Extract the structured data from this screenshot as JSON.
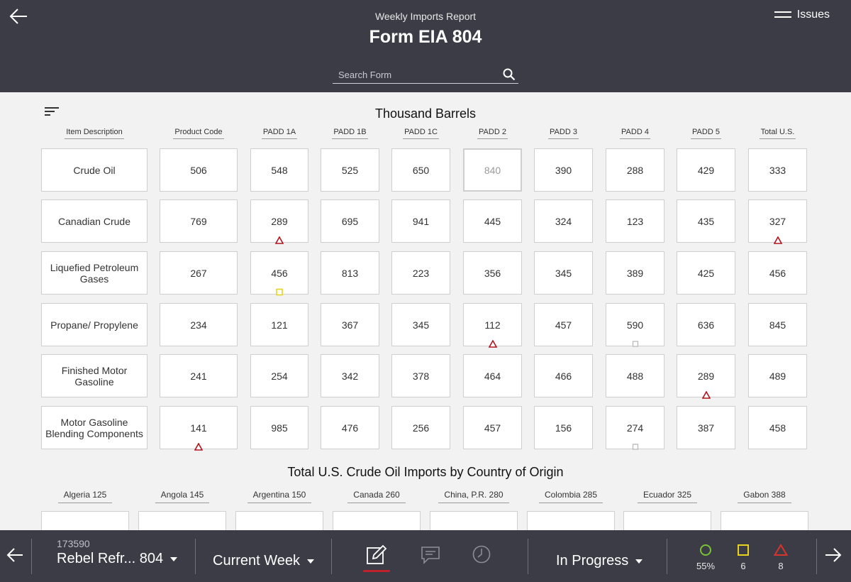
{
  "header": {
    "subtitle": "Weekly Imports Report",
    "title": "Form EIA 804",
    "issues_label": "Issues",
    "search_placeholder": "Search Form"
  },
  "table": {
    "title": "Thousand Barrels",
    "columns": [
      "Item Description",
      "Product Code",
      "PADD 1A",
      "PADD 1B",
      "PADD 1C",
      "PADD 2",
      "PADD 3",
      "PADD 4",
      "PADD 5",
      "Total U.S."
    ],
    "rows": [
      {
        "description": "Crude Oil",
        "values": [
          "506",
          "548",
          "525",
          "650",
          "840",
          "390",
          "288",
          "429",
          "333"
        ]
      },
      {
        "description": "Canadian Crude",
        "values": [
          "769",
          "289",
          "695",
          "941",
          "445",
          "324",
          "123",
          "435",
          "327"
        ]
      },
      {
        "description": "Liquefied Petroleum Gases",
        "values": [
          "267",
          "456",
          "813",
          "223",
          "356",
          "345",
          "389",
          "425",
          "456"
        ]
      },
      {
        "description": "Propane/ Propylene",
        "values": [
          "234",
          "121",
          "367",
          "345",
          "112",
          "457",
          "590",
          "636",
          "845"
        ]
      },
      {
        "description": "Finished Motor Gasoline",
        "values": [
          "241",
          "254",
          "342",
          "378",
          "464",
          "466",
          "488",
          "289",
          "489"
        ]
      },
      {
        "description": "Motor Gasoline Blending Components",
        "values": [
          "141",
          "985",
          "476",
          "256",
          "457",
          "156",
          "274",
          "387",
          "458"
        ]
      }
    ],
    "flags": [
      {
        "row": 1,
        "col": 2,
        "type": "error"
      },
      {
        "row": 1,
        "col": 9,
        "type": "error"
      },
      {
        "row": 2,
        "col": 2,
        "type": "warning"
      },
      {
        "row": 3,
        "col": 5,
        "type": "error"
      },
      {
        "row": 3,
        "col": 7,
        "type": "neutral"
      },
      {
        "row": 4,
        "col": 8,
        "type": "error"
      },
      {
        "row": 5,
        "col": 1,
        "type": "error"
      },
      {
        "row": 5,
        "col": 7,
        "type": "neutral"
      }
    ],
    "disabled_cells": [
      {
        "row": 0,
        "col": 5
      }
    ]
  },
  "countries": {
    "title": "Total U.S. Crude Oil Imports by Country of Origin",
    "items": [
      "Algeria 125",
      "Angola 145",
      "Argentina 150",
      "Canada 260",
      "China, P.R. 280",
      "Colombia 285",
      "Ecuador 325",
      "Gabon 388"
    ]
  },
  "footer": {
    "form_id": "173590",
    "form_name": "Rebel Refr... 804",
    "period": "Current Week",
    "status": "In Progress",
    "stats": [
      {
        "icon": "circle-icon",
        "value": "55%",
        "color": "#7bc134"
      },
      {
        "icon": "square-icon",
        "value": "6",
        "color": "#e8d21d"
      },
      {
        "icon": "triangle-icon",
        "value": "8",
        "color": "#d9342b"
      }
    ]
  },
  "colors": {
    "header_bg": "#3b3c45",
    "accent_red": "#c0222c",
    "error": "#b3141e",
    "warning": "#e8d21d"
  }
}
